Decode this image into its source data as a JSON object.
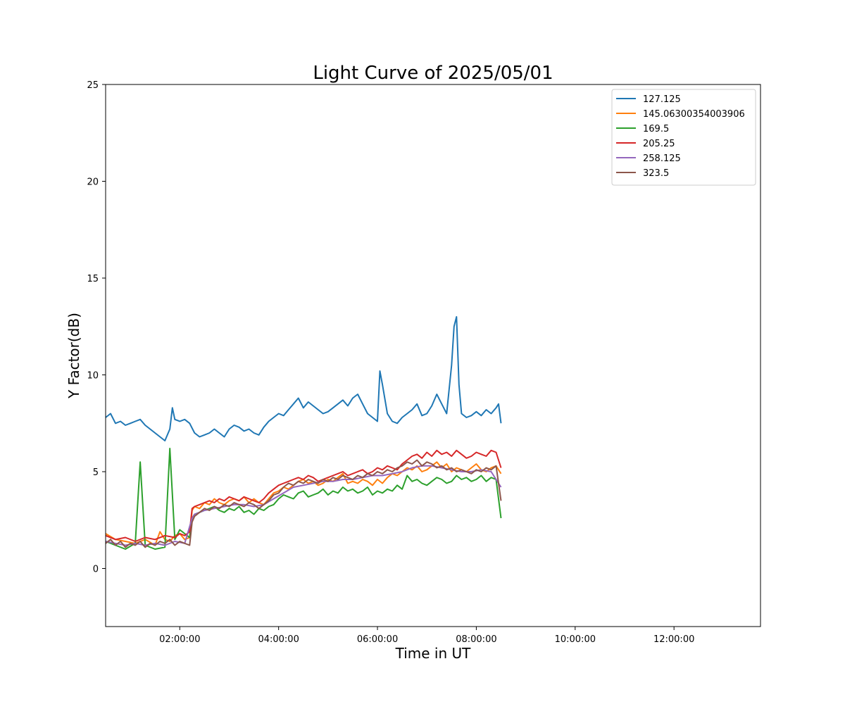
{
  "chart_data": {
    "type": "line",
    "title": "Light Curve of 2025/05/01",
    "xlabel": "Time in UT",
    "ylabel": "Y Factor(dB)",
    "xlim_hours": [
      0.5,
      13.75
    ],
    "ylim": [
      -3,
      25
    ],
    "x_ticks": [
      {
        "hour": 2,
        "label": "02:00:00"
      },
      {
        "hour": 4,
        "label": "04:00:00"
      },
      {
        "hour": 6,
        "label": "06:00:00"
      },
      {
        "hour": 8,
        "label": "08:00:00"
      },
      {
        "hour": 10,
        "label": "10:00:00"
      },
      {
        "hour": 12,
        "label": "12:00:00"
      }
    ],
    "y_ticks": [
      {
        "value": 0,
        "label": "0"
      },
      {
        "value": 5,
        "label": "5"
      },
      {
        "value": 10,
        "label": "10"
      },
      {
        "value": 15,
        "label": "15"
      },
      {
        "value": 20,
        "label": "20"
      },
      {
        "value": 25,
        "label": "25"
      }
    ],
    "legend_position": "top-right",
    "grid": false,
    "series": [
      {
        "name": "127.125",
        "color": "#1f77b4",
        "x": [
          0.5,
          0.6,
          0.7,
          0.8,
          0.9,
          1.0,
          1.1,
          1.2,
          1.3,
          1.4,
          1.5,
          1.6,
          1.7,
          1.8,
          1.85,
          1.9,
          2.0,
          2.1,
          2.2,
          2.3,
          2.4,
          2.5,
          2.6,
          2.7,
          2.8,
          2.9,
          3.0,
          3.1,
          3.2,
          3.3,
          3.4,
          3.5,
          3.6,
          3.7,
          3.8,
          3.9,
          4.0,
          4.1,
          4.2,
          4.3,
          4.4,
          4.5,
          4.6,
          4.7,
          4.8,
          4.9,
          5.0,
          5.1,
          5.2,
          5.3,
          5.4,
          5.5,
          5.6,
          5.7,
          5.8,
          5.9,
          6.0,
          6.05,
          6.1,
          6.2,
          6.3,
          6.4,
          6.5,
          6.6,
          6.7,
          6.8,
          6.9,
          7.0,
          7.1,
          7.2,
          7.3,
          7.4,
          7.5,
          7.55,
          7.6,
          7.65,
          7.7,
          7.8,
          7.9,
          8.0,
          8.1,
          8.2,
          8.3,
          8.4,
          8.45,
          8.5
        ],
        "y": [
          7.8,
          8.0,
          7.5,
          7.6,
          7.4,
          7.5,
          7.6,
          7.7,
          7.4,
          7.2,
          7.0,
          6.8,
          6.6,
          7.2,
          8.3,
          7.7,
          7.6,
          7.7,
          7.5,
          7.0,
          6.8,
          6.9,
          7.0,
          7.2,
          7.0,
          6.8,
          7.2,
          7.4,
          7.3,
          7.1,
          7.2,
          7.0,
          6.9,
          7.3,
          7.6,
          7.8,
          8.0,
          7.9,
          8.2,
          8.5,
          8.8,
          8.3,
          8.6,
          8.4,
          8.2,
          8.0,
          8.1,
          8.3,
          8.5,
          8.7,
          8.4,
          8.8,
          9.0,
          8.5,
          8.0,
          7.8,
          7.6,
          10.2,
          9.5,
          8.0,
          7.6,
          7.5,
          7.8,
          8.0,
          8.2,
          8.5,
          7.9,
          8.0,
          8.4,
          9.0,
          8.5,
          8.0,
          10.5,
          12.5,
          13.0,
          9.5,
          8.0,
          7.8,
          7.9,
          8.1,
          7.9,
          8.2,
          8.0,
          8.3,
          8.5,
          7.5
        ]
      },
      {
        "name": "145.06300354003906",
        "color": "#ff7f0e",
        "x": [
          0.5,
          0.7,
          0.9,
          1.1,
          1.3,
          1.5,
          1.6,
          1.7,
          1.8,
          1.9,
          2.0,
          2.1,
          2.2,
          2.25,
          2.3,
          2.4,
          2.5,
          2.6,
          2.7,
          2.8,
          2.9,
          3.0,
          3.1,
          3.2,
          3.3,
          3.4,
          3.5,
          3.6,
          3.7,
          3.8,
          3.9,
          4.0,
          4.1,
          4.2,
          4.3,
          4.4,
          4.5,
          4.6,
          4.7,
          4.8,
          4.9,
          5.0,
          5.1,
          5.2,
          5.3,
          5.4,
          5.5,
          5.6,
          5.7,
          5.8,
          5.9,
          6.0,
          6.1,
          6.2,
          6.3,
          6.4,
          6.5,
          6.6,
          6.7,
          6.8,
          6.9,
          7.0,
          7.1,
          7.2,
          7.3,
          7.4,
          7.5,
          7.6,
          7.7,
          7.8,
          7.9,
          8.0,
          8.1,
          8.2,
          8.3,
          8.4,
          8.5
        ],
        "y": [
          1.8,
          1.5,
          1.4,
          1.3,
          1.5,
          1.2,
          1.9,
          1.5,
          1.4,
          1.7,
          1.8,
          1.5,
          1.6,
          3.0,
          3.2,
          3.1,
          3.4,
          3.3,
          3.6,
          3.4,
          3.3,
          3.5,
          3.6,
          3.5,
          3.7,
          3.4,
          3.6,
          3.4,
          3.3,
          3.6,
          3.9,
          4.0,
          4.2,
          4.1,
          4.3,
          4.5,
          4.6,
          4.4,
          4.5,
          4.3,
          4.4,
          4.6,
          4.5,
          4.7,
          4.9,
          4.4,
          4.5,
          4.4,
          4.6,
          4.5,
          4.3,
          4.6,
          4.4,
          4.7,
          4.9,
          4.8,
          5.0,
          5.2,
          5.1,
          5.3,
          5.0,
          5.1,
          5.3,
          5.5,
          5.2,
          5.4,
          5.0,
          5.2,
          5.1,
          5.0,
          5.2,
          5.4,
          5.1,
          5.0,
          5.2,
          5.3,
          4.9
        ]
      },
      {
        "name": "169.5",
        "color": "#2ca02c",
        "x": [
          0.5,
          0.7,
          0.9,
          1.1,
          1.2,
          1.3,
          1.5,
          1.7,
          1.8,
          1.9,
          2.0,
          2.1,
          2.2,
          2.25,
          2.3,
          2.4,
          2.5,
          2.6,
          2.7,
          2.8,
          2.9,
          3.0,
          3.1,
          3.2,
          3.3,
          3.4,
          3.5,
          3.6,
          3.7,
          3.8,
          3.9,
          4.0,
          4.1,
          4.2,
          4.3,
          4.4,
          4.5,
          4.6,
          4.7,
          4.8,
          4.9,
          5.0,
          5.1,
          5.2,
          5.3,
          5.4,
          5.5,
          5.6,
          5.7,
          5.8,
          5.9,
          6.0,
          6.1,
          6.2,
          6.3,
          6.4,
          6.5,
          6.6,
          6.7,
          6.8,
          6.9,
          7.0,
          7.1,
          7.2,
          7.3,
          7.4,
          7.5,
          7.6,
          7.7,
          7.8,
          7.9,
          8.0,
          8.1,
          8.2,
          8.3,
          8.4,
          8.5
        ],
        "y": [
          1.4,
          1.2,
          1.0,
          1.3,
          5.5,
          1.2,
          1.0,
          1.1,
          6.2,
          1.5,
          2.0,
          1.8,
          1.6,
          2.6,
          2.8,
          2.9,
          3.0,
          3.1,
          3.2,
          3.0,
          2.9,
          3.1,
          3.0,
          3.2,
          2.9,
          3.0,
          2.8,
          3.1,
          3.0,
          3.2,
          3.3,
          3.6,
          3.8,
          3.7,
          3.6,
          3.9,
          4.0,
          3.7,
          3.8,
          3.9,
          4.1,
          3.8,
          4.0,
          3.9,
          4.2,
          4.0,
          4.1,
          3.9,
          4.0,
          4.2,
          3.8,
          4.0,
          3.9,
          4.1,
          4.0,
          4.3,
          4.1,
          4.8,
          4.5,
          4.6,
          4.4,
          4.3,
          4.5,
          4.7,
          4.6,
          4.4,
          4.5,
          4.8,
          4.6,
          4.7,
          4.5,
          4.6,
          4.8,
          4.5,
          4.7,
          4.6,
          2.6
        ]
      },
      {
        "name": "205.25",
        "color": "#d62728",
        "x": [
          0.5,
          0.7,
          0.9,
          1.1,
          1.3,
          1.5,
          1.7,
          1.9,
          2.0,
          2.1,
          2.2,
          2.25,
          2.3,
          2.4,
          2.5,
          2.6,
          2.7,
          2.8,
          2.9,
          3.0,
          3.1,
          3.2,
          3.3,
          3.4,
          3.5,
          3.6,
          3.7,
          3.8,
          3.9,
          4.0,
          4.1,
          4.2,
          4.3,
          4.4,
          4.5,
          4.6,
          4.7,
          4.8,
          4.9,
          5.0,
          5.1,
          5.2,
          5.3,
          5.4,
          5.5,
          5.6,
          5.7,
          5.8,
          5.9,
          6.0,
          6.1,
          6.2,
          6.3,
          6.4,
          6.5,
          6.6,
          6.7,
          6.8,
          6.9,
          7.0,
          7.1,
          7.2,
          7.3,
          7.4,
          7.5,
          7.6,
          7.7,
          7.8,
          7.9,
          8.0,
          8.1,
          8.2,
          8.3,
          8.4,
          8.5
        ],
        "y": [
          1.7,
          1.5,
          1.6,
          1.4,
          1.6,
          1.5,
          1.7,
          1.6,
          1.8,
          1.7,
          1.9,
          3.1,
          3.2,
          3.3,
          3.4,
          3.5,
          3.4,
          3.6,
          3.5,
          3.7,
          3.6,
          3.5,
          3.7,
          3.6,
          3.5,
          3.4,
          3.6,
          3.9,
          4.1,
          4.3,
          4.4,
          4.5,
          4.6,
          4.7,
          4.6,
          4.8,
          4.7,
          4.5,
          4.6,
          4.7,
          4.8,
          4.9,
          5.0,
          4.8,
          4.9,
          5.0,
          5.1,
          4.9,
          5.0,
          5.2,
          5.1,
          5.3,
          5.2,
          5.1,
          5.4,
          5.6,
          5.8,
          5.9,
          5.7,
          6.0,
          5.8,
          6.1,
          5.9,
          6.0,
          5.8,
          6.1,
          5.9,
          5.7,
          5.8,
          6.0,
          5.9,
          5.8,
          6.1,
          6.0,
          5.2
        ]
      },
      {
        "name": "258.125",
        "color": "#9467bd",
        "x": [
          0.5,
          0.7,
          0.9,
          1.1,
          1.3,
          1.5,
          1.7,
          1.9,
          2.1,
          2.25,
          2.3,
          2.5,
          2.7,
          2.9,
          3.1,
          3.3,
          3.5,
          3.7,
          3.9,
          4.1,
          4.3,
          4.5,
          4.7,
          4.9,
          5.1,
          5.3,
          5.5,
          5.7,
          5.9,
          6.1,
          6.3,
          6.5,
          6.7,
          6.9,
          7.1,
          7.3,
          7.5,
          7.7,
          7.9,
          8.1,
          8.3,
          8.5
        ],
        "y": [
          1.4,
          1.3,
          1.2,
          1.3,
          1.2,
          1.3,
          1.2,
          1.4,
          1.3,
          2.6,
          2.8,
          3.0,
          3.1,
          3.2,
          3.3,
          3.3,
          3.2,
          3.3,
          3.6,
          3.9,
          4.2,
          4.3,
          4.4,
          4.5,
          4.5,
          4.6,
          4.6,
          4.7,
          4.8,
          4.8,
          4.9,
          5.0,
          5.2,
          5.3,
          5.3,
          5.2,
          5.1,
          5.0,
          5.0,
          5.1,
          5.0,
          4.2
        ]
      },
      {
        "name": "323.5",
        "color": "#8c564b",
        "x": [
          0.5,
          0.6,
          0.7,
          0.8,
          0.9,
          1.0,
          1.1,
          1.2,
          1.3,
          1.4,
          1.5,
          1.6,
          1.7,
          1.8,
          1.9,
          2.0,
          2.1,
          2.2,
          2.25,
          2.3,
          2.4,
          2.5,
          2.6,
          2.7,
          2.8,
          2.9,
          3.0,
          3.1,
          3.2,
          3.3,
          3.4,
          3.5,
          3.6,
          3.7,
          3.8,
          3.9,
          4.0,
          4.1,
          4.2,
          4.3,
          4.4,
          4.5,
          4.6,
          4.7,
          4.8,
          4.9,
          5.0,
          5.1,
          5.2,
          5.3,
          5.4,
          5.5,
          5.6,
          5.7,
          5.8,
          5.9,
          6.0,
          6.1,
          6.2,
          6.3,
          6.4,
          6.5,
          6.6,
          6.7,
          6.8,
          6.9,
          7.0,
          7.1,
          7.2,
          7.3,
          7.4,
          7.5,
          7.6,
          7.7,
          7.8,
          7.9,
          8.0,
          8.1,
          8.2,
          8.3,
          8.4,
          8.5
        ],
        "y": [
          1.3,
          1.5,
          1.2,
          1.4,
          1.1,
          1.3,
          1.2,
          1.4,
          1.1,
          1.3,
          1.2,
          1.4,
          1.3,
          1.5,
          1.2,
          1.4,
          1.3,
          1.2,
          2.4,
          2.7,
          2.9,
          3.1,
          3.0,
          3.2,
          3.1,
          3.3,
          3.2,
          3.4,
          3.3,
          3.2,
          3.4,
          3.3,
          3.1,
          3.3,
          3.5,
          3.8,
          3.9,
          4.2,
          4.4,
          4.3,
          4.5,
          4.4,
          4.6,
          4.5,
          4.4,
          4.6,
          4.5,
          4.7,
          4.6,
          4.8,
          4.7,
          4.6,
          4.8,
          4.7,
          4.9,
          4.8,
          5.0,
          4.9,
          5.1,
          5.0,
          5.2,
          5.3,
          5.5,
          5.4,
          5.6,
          5.3,
          5.5,
          5.4,
          5.2,
          5.3,
          5.1,
          5.2,
          5.0,
          5.1,
          5.0,
          4.9,
          5.1,
          5.0,
          5.2,
          5.1,
          5.3,
          3.5
        ]
      }
    ]
  }
}
